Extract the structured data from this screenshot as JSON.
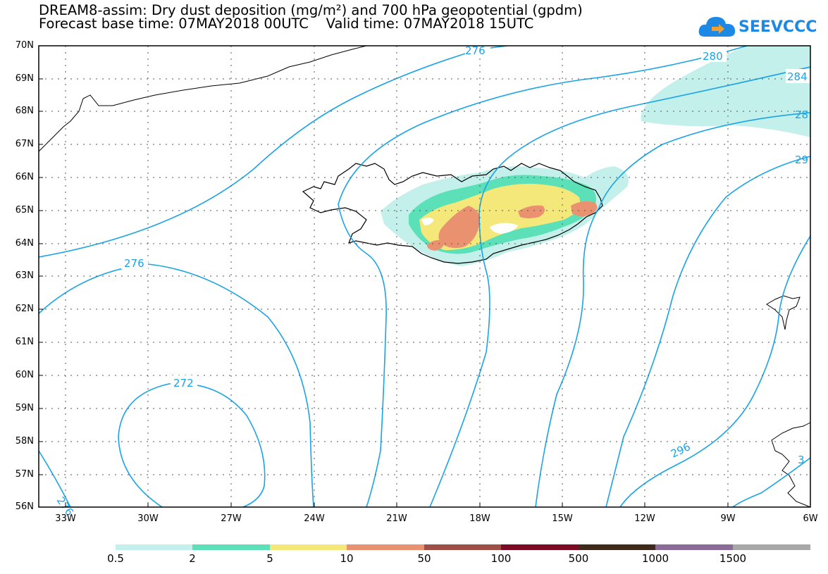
{
  "title": {
    "line1": "DREAM8-assim: Dry dust deposition (mg/m²) and 700 hPa geopotential (gpdm)",
    "line2": "Forecast base time: 07MAY2018 00UTC    Valid time: 07MAY2018 15UTC"
  },
  "logo": {
    "text": "SEEVCCC",
    "icon": "cloud-icon",
    "color": "#1e88e5"
  },
  "axes": {
    "lat_labels": [
      "70N",
      "69N",
      "68N",
      "67N",
      "66N",
      "65N",
      "64N",
      "63N",
      "62N",
      "61N",
      "60N",
      "59N",
      "58N",
      "57N",
      "56N"
    ],
    "lon_labels": [
      "33W",
      "30W",
      "27W",
      "24W",
      "21W",
      "18W",
      "15W",
      "12W",
      "9W",
      "6W"
    ]
  },
  "contours": {
    "color": "#1aa3e6",
    "labels": [
      "276",
      "276",
      "272",
      "276",
      "280",
      "284",
      "28",
      "29",
      "296",
      "3"
    ]
  },
  "colorbar": {
    "colors": [
      "#c3f0ea",
      "#5ce0b8",
      "#f5e87a",
      "#ea9270",
      "#a04f46",
      "#7d0a25",
      "#3d2a1a",
      "#8c6b99",
      "#a8a8a8"
    ],
    "labels": [
      "0.5",
      "2",
      "5",
      "10",
      "50",
      "100",
      "500",
      "1000",
      "1500"
    ]
  }
}
